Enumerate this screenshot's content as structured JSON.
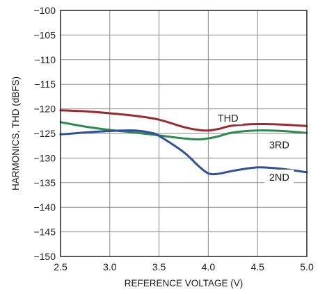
{
  "chart_data": {
    "type": "line",
    "title": "",
    "xlabel": "REFERENCE VOLTAGE (V)",
    "ylabel": "HARMONICS, THD (dBFS)",
    "xlim": [
      2.5,
      5.0
    ],
    "ylim": [
      -150,
      -100
    ],
    "xticks": [
      2.5,
      3.0,
      3.5,
      4.0,
      4.5,
      5.0
    ],
    "xtick_labels": [
      "2.5",
      "3.0",
      "3.5",
      "4.0",
      "4.5",
      "5.0"
    ],
    "yticks": [
      -100,
      -105,
      -110,
      -115,
      -120,
      -125,
      -130,
      -135,
      -140,
      -145,
      -150
    ],
    "ytick_labels": [
      "−100",
      "−105",
      "−110",
      "−115",
      "−120",
      "−125",
      "−130",
      "−135",
      "−140",
      "−145",
      "−150"
    ],
    "grid": true,
    "series": [
      {
        "name": "THD",
        "color": "#9b2a2e",
        "x": [
          2.5,
          2.75,
          3.0,
          3.25,
          3.5,
          3.75,
          3.9,
          4.0,
          4.1,
          4.25,
          4.5,
          4.75,
          5.0
        ],
        "y": [
          -120.3,
          -120.5,
          -120.9,
          -121.4,
          -122.2,
          -123.7,
          -124.3,
          -124.4,
          -124.1,
          -123.4,
          -123.1,
          -123.2,
          -123.5
        ]
      },
      {
        "name": "3RD",
        "color": "#2d8a4e",
        "x": [
          2.5,
          2.75,
          3.0,
          3.25,
          3.5,
          3.75,
          3.9,
          4.0,
          4.1,
          4.25,
          4.5,
          4.75,
          5.0
        ],
        "y": [
          -122.7,
          -123.6,
          -124.3,
          -124.8,
          -125.4,
          -126.0,
          -126.2,
          -126.0,
          -125.6,
          -124.8,
          -124.4,
          -124.5,
          -124.9
        ]
      },
      {
        "name": "2ND",
        "color": "#2f4f9c",
        "x": [
          2.5,
          2.75,
          3.0,
          3.25,
          3.4,
          3.5,
          3.75,
          3.9,
          4.0,
          4.1,
          4.25,
          4.5,
          4.75,
          5.0
        ],
        "y": [
          -125.2,
          -124.8,
          -124.5,
          -124.4,
          -124.8,
          -125.5,
          -128.8,
          -131.6,
          -133.1,
          -133.2,
          -132.6,
          -131.9,
          -132.2,
          -132.9
        ]
      }
    ],
    "annotations": [
      {
        "text": "THD",
        "series": "THD",
        "x": 4.2,
        "y": -121.9
      },
      {
        "text": "3RD",
        "series": "3RD",
        "x": 4.72,
        "y": -127.3
      },
      {
        "text": "2ND",
        "series": "2ND",
        "x": 4.72,
        "y": -133.9
      }
    ]
  }
}
